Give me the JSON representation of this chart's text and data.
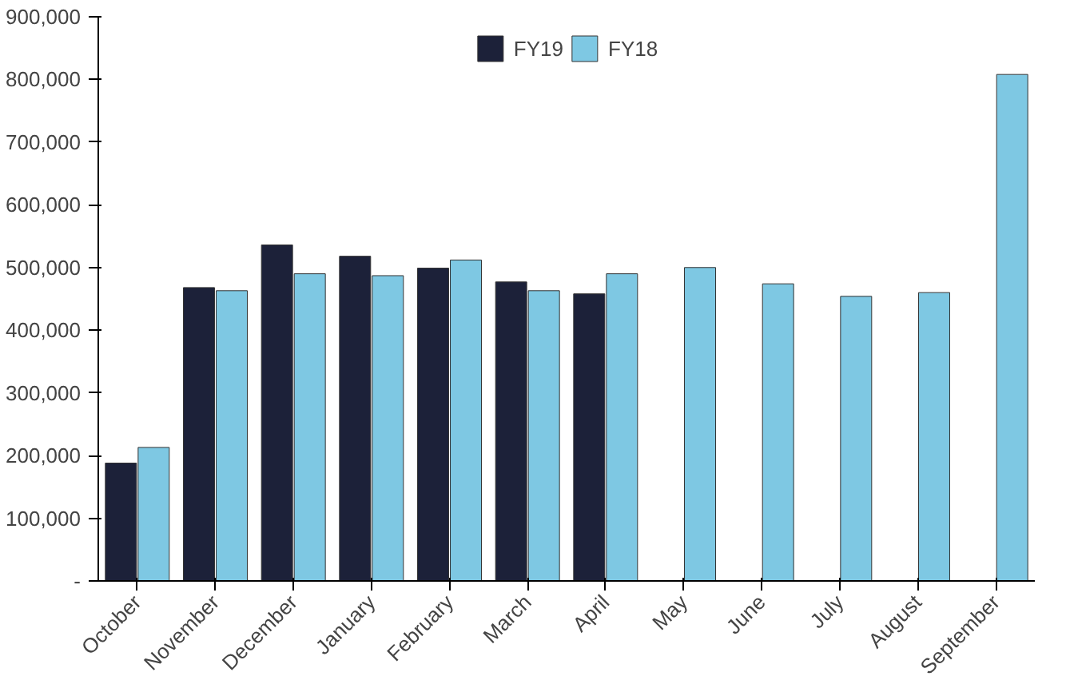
{
  "chart_data": {
    "type": "bar",
    "categories": [
      "October",
      "November",
      "December",
      "January",
      "February",
      "March",
      "April",
      "May",
      "June",
      "July",
      "August",
      "September"
    ],
    "series": [
      {
        "name": "FY19",
        "color": "#1c2139",
        "values": [
          188000,
          468000,
          536000,
          518000,
          499000,
          477000,
          458000,
          null,
          null,
          null,
          null,
          null
        ]
      },
      {
        "name": "FY18",
        "color": "#7ec8e3",
        "values": [
          213000,
          463000,
          490000,
          487000,
          512000,
          463000,
          490000,
          500000,
          474000,
          454000,
          460000,
          808000
        ]
      }
    ],
    "ylim": [
      0,
      900000
    ],
    "yticks": [
      {
        "value": 0,
        "label": "-"
      },
      {
        "value": 100000,
        "label": "100,000"
      },
      {
        "value": 200000,
        "label": "200,000"
      },
      {
        "value": 300000,
        "label": "300,000"
      },
      {
        "value": 400000,
        "label": "400,000"
      },
      {
        "value": 500000,
        "label": "500,000"
      },
      {
        "value": 600000,
        "label": "600,000"
      },
      {
        "value": 700000,
        "label": "700,000"
      },
      {
        "value": 800000,
        "label": "800,000"
      },
      {
        "value": 900000,
        "label": "900,000"
      }
    ],
    "grid": false,
    "legend": "top"
  }
}
